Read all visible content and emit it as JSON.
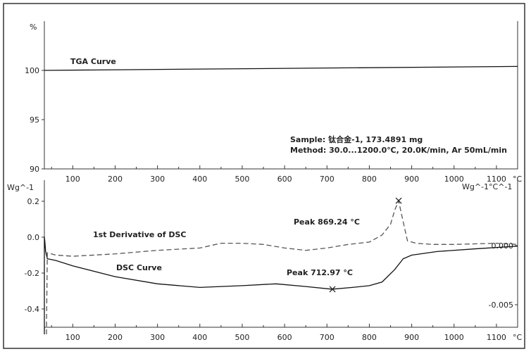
{
  "chart_data": [
    {
      "type": "line",
      "panel": "top",
      "ylabel": "%",
      "ylim": [
        90,
        110
      ],
      "xlim": [
        33,
        1150
      ],
      "yticks": [
        90,
        95,
        100
      ],
      "xticks": [
        100,
        200,
        300,
        400,
        500,
        600,
        700,
        800,
        900,
        1000,
        1100
      ],
      "xunit": "°C",
      "series": [
        {
          "name": "TGA Curve",
          "x": [
            30,
            1150
          ],
          "y": [
            100,
            100.4
          ],
          "style": "solid"
        }
      ],
      "annotations": {
        "sample": "Sample: 钛合金-1, 173.4891 mg",
        "method": "Method: 30.0...1200.0℃, 20.0K/min, Ar 50mL/min"
      }
    },
    {
      "type": "line",
      "panel": "bottom",
      "ylabel": "Wg^-1",
      "ylabel_right": "Wg^-1°C^-1",
      "ylim": [
        -0.5,
        0.31
      ],
      "ylim_right": [
        -0.0069,
        0.0055
      ],
      "xlim": [
        33,
        1150
      ],
      "yticks": [
        "0.2",
        "0.0",
        "-0.2",
        "-0.4"
      ],
      "yticks_right": [
        "0.000",
        "-0.005"
      ],
      "xticks": [
        100,
        200,
        300,
        400,
        500,
        600,
        700,
        800,
        900,
        1000,
        1100
      ],
      "xunit": "°C",
      "series": [
        {
          "name": "DSC Curve",
          "axis": "left",
          "style": "solid",
          "x": [
            30,
            34,
            36,
            40,
            60,
            100,
            200,
            300,
            400,
            500,
            580,
            650,
            712,
            760,
            800,
            830,
            860,
            880,
            900,
            960,
            1050,
            1150
          ],
          "y": [
            0.0,
            -0.02,
            -0.08,
            -0.12,
            -0.13,
            -0.16,
            -0.22,
            -0.26,
            -0.28,
            -0.27,
            -0.26,
            -0.275,
            -0.29,
            -0.28,
            -0.27,
            -0.25,
            -0.18,
            -0.12,
            -0.1,
            -0.08,
            -0.065,
            -0.05
          ]
        },
        {
          "name": "1st Derivative of DSC",
          "axis": "right",
          "style": "dashed",
          "x": [
            38,
            40,
            60,
            100,
            200,
            300,
            400,
            450,
            500,
            550,
            600,
            650,
            700,
            750,
            800,
            830,
            850,
            860,
            869,
            880,
            890,
            910,
            950,
            1000,
            1100,
            1150
          ],
          "y": [
            -0.0069,
            -0.0006,
            -0.0008,
            -0.0009,
            -0.0007,
            -0.0004,
            -0.0002,
            0.0002,
            0.0002,
            0.0001,
            -0.0002,
            -0.0004,
            -0.0002,
            0.0001,
            0.0003,
            0.0009,
            0.0018,
            0.003,
            0.0038,
            0.002,
            0.0004,
            0.0002,
            0.0001,
            0.0001,
            0.0002,
            0.0001
          ]
        }
      ],
      "annotations": {
        "peak_dsc": "Peak  712.97 °C",
        "peak_deriv": "Peak  869.24 °C"
      },
      "peaks": [
        {
          "series": "DSC Curve",
          "x": 712.97
        },
        {
          "series": "1st Derivative of DSC",
          "x": 869.24
        }
      ]
    }
  ]
}
